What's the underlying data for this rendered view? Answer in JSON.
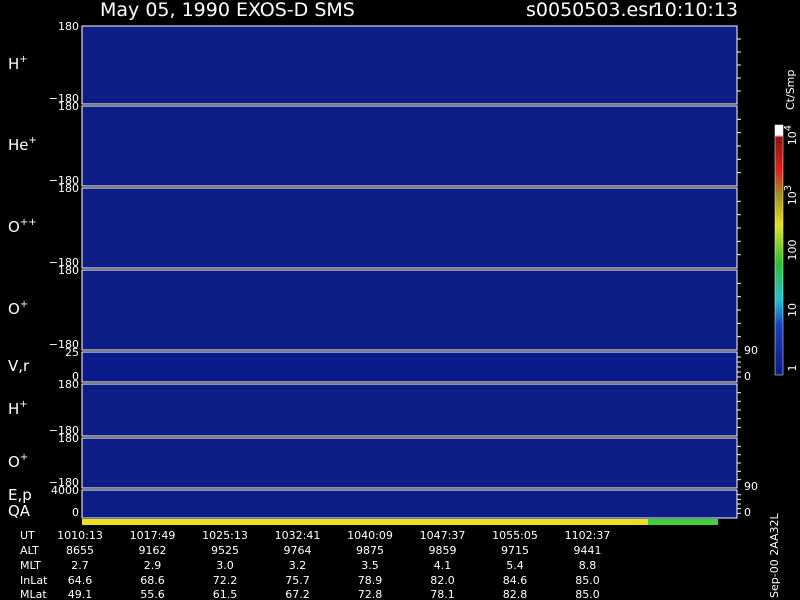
{
  "header": {
    "title": "May 05, 1990   EXOS-D SMS",
    "file": "s0050503.esr",
    "time": "10:10:13"
  },
  "panels": [
    {
      "label": "H",
      "charge": "+",
      "ticks": [
        "180",
        "−180"
      ]
    },
    {
      "label": "He",
      "charge": "+",
      "ticks": [
        "180",
        "−180"
      ]
    },
    {
      "label": "O",
      "charge": "++",
      "ticks": [
        "180",
        "−180"
      ]
    },
    {
      "label": "O",
      "charge": "+",
      "ticks": [
        "180",
        "−180"
      ]
    },
    {
      "label": "V,r",
      "ticks": [
        "25",
        "0"
      ],
      "right_ticks": [
        "90",
        "0"
      ]
    },
    {
      "label": "H",
      "charge": "+",
      "ticks": [
        "180",
        "−180"
      ]
    },
    {
      "label": "O",
      "charge": "+",
      "ticks": [
        "180",
        "−180"
      ],
      "right_ticks": [
        "90"
      ]
    },
    {
      "label": "E,p",
      "label2": "QA",
      "ticks": [
        "4000",
        "0"
      ],
      "right_ticks": [
        "0"
      ]
    }
  ],
  "colorbar": {
    "unit": "Ct/Smp",
    "ticks": [
      {
        "base": "10",
        "exp": "4"
      },
      {
        "base": "10",
        "exp": "3"
      },
      {
        "base": "100"
      },
      {
        "base": "10"
      },
      {
        "base": "1"
      }
    ]
  },
  "footer_note": "Sep-00  2AA32L",
  "table": {
    "row_labels": [
      "UT",
      "ALT",
      "MLT",
      "InLat",
      "MLat"
    ],
    "rows": [
      [
        "1010:13",
        "1017:49",
        "1025:13",
        "1032:41",
        "1040:09",
        "1047:37",
        "1055:05",
        "1102:37"
      ],
      [
        "8655",
        "9162",
        "9525",
        "9764",
        "9875",
        "9859",
        "9715",
        "9441"
      ],
      [
        "2.7",
        "2.9",
        "3.0",
        "3.2",
        "3.5",
        "4.1",
        "5.4",
        "8.8"
      ],
      [
        "64.6",
        "68.6",
        "72.2",
        "75.7",
        "78.9",
        "82.0",
        "84.6",
        "85.0"
      ],
      [
        "49.1",
        "55.6",
        "61.5",
        "67.2",
        "72.8",
        "78.1",
        "82.8",
        "85.0"
      ]
    ]
  }
}
